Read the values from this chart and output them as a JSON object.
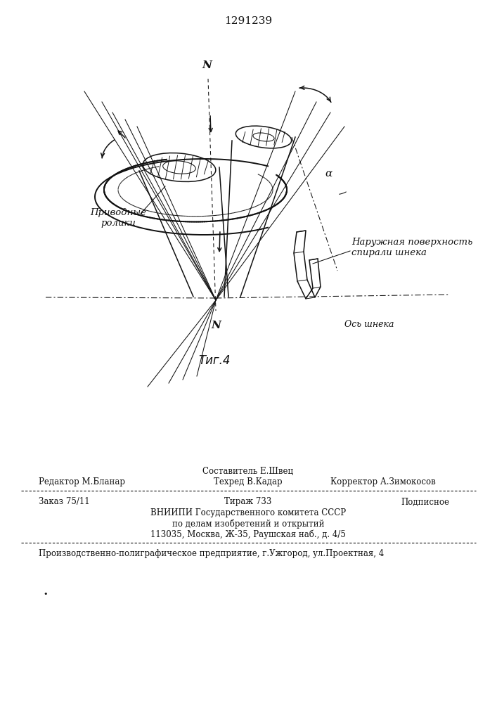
{
  "patent_number": "1291239",
  "fig_label": "Τиг.4",
  "background_color": "#ffffff",
  "text_color": "#1a1a1a",
  "label_naruzhnya": "Наружная поверхность\nспирали шнека",
  "label_privodnye": "Приводные\nролики",
  "label_os_shneka": "Ось шнека",
  "label_N_top": "N",
  "label_N_bottom": "N",
  "label_alpha": "α",
  "footer_sestavitel": "Составитель Е.Швец",
  "footer_redaktor": "Редактор М.Бланар",
  "footer_tehred": "Техред В.Кадар",
  "footer_korrektor": "Корректор А.Зимокосов",
  "footer_zakaz": "Заказ 75/11",
  "footer_tirazh": "Тираж 733",
  "footer_podpisnoe": "Подписное",
  "footer_vniipи": "ВНИИПИ Государственного комитета СССР",
  "footer_po_delam": "по делам изобретений и открытий",
  "footer_address": "113035, Москва, Ж-35, Раушская наб., д. 4/5",
  "footer_uggorod": "Производственно-полиграфическое предприятие, г.Ужгород, ул.Проектная, 4"
}
